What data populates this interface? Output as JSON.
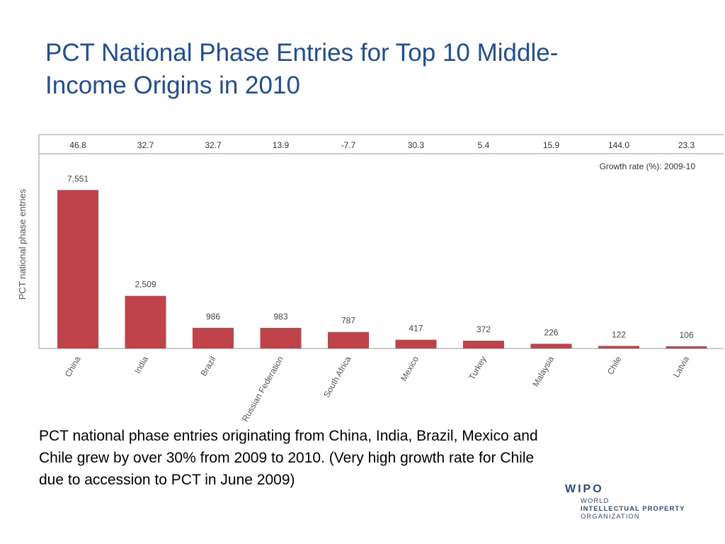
{
  "slide": {
    "title_line1": "PCT National Phase Entries for Top 10 Middle-",
    "title_line2": "Income Origins in 2010",
    "caption_line1": "PCT national phase entries originating from China, India, Brazil, Mexico and",
    "caption_line2": "Chile grew by over 30% from 2009 to 2010.  (Very high growth rate for Chile",
    "caption_line3": "due to accession to PCT in June 2009)"
  },
  "logo": {
    "main": "WIPO",
    "line1": "WORLD",
    "line2": "INTELLECTUAL PROPERTY",
    "line3": "ORGANIZATION"
  },
  "chart_data": {
    "type": "bar",
    "categories": [
      "China",
      "India",
      "Brazil",
      "Russian Federation",
      "South Africa",
      "Mexico",
      "Turkey",
      "Malaysia",
      "Chile",
      "Latvia"
    ],
    "values": [
      7551,
      2509,
      986,
      983,
      787,
      417,
      372,
      226,
      122,
      106
    ],
    "value_labels": [
      "7,551",
      "2,509",
      "986",
      "983",
      "787",
      "417",
      "372",
      "226",
      "122",
      "106"
    ],
    "growth_rates": [
      "46.8",
      "32.7",
      "32.7",
      "13.9",
      "-7.7",
      "30.3",
      "5.4",
      "15.9",
      "144.0",
      "23.3"
    ],
    "growth_label": "Growth rate (%): 2009-10",
    "ylabel": "PCT national phase entries",
    "xlabel": "",
    "ylim": [
      0,
      8000
    ],
    "bar_color": "#c0434a",
    "legend": "none"
  }
}
